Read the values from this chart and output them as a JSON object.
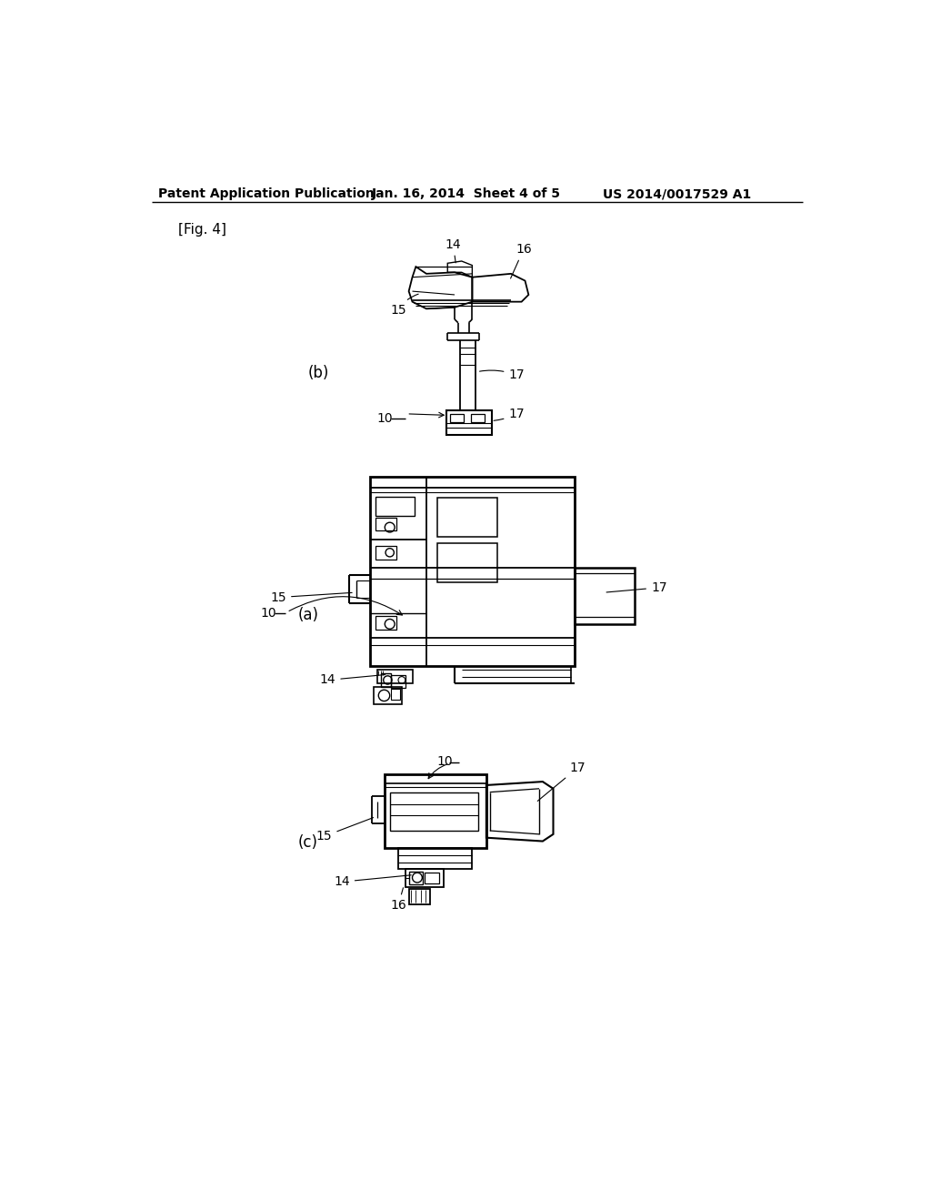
{
  "bg_color": "#ffffff",
  "header_left": "Patent Application Publication",
  "header_center": "Jan. 16, 2014  Sheet 4 of 5",
  "header_right": "US 2014/0017529 A1",
  "fig_label": "[Fig. 4]",
  "text_color": "#000000",
  "view_b_label": "(b)",
  "view_a_label": "(a)",
  "view_c_label": "(c)"
}
